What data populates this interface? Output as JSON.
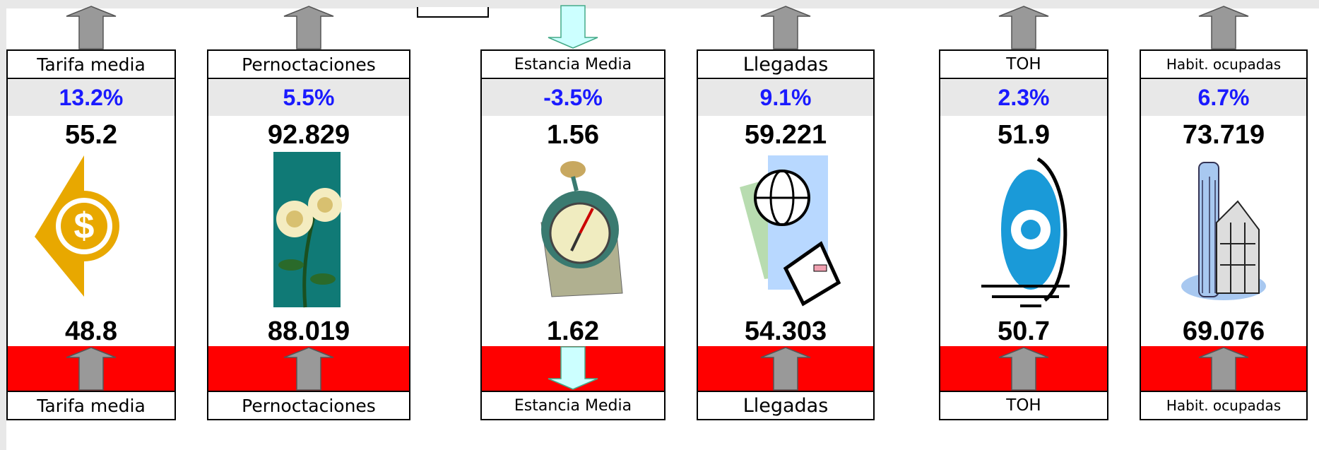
{
  "cards": [
    {
      "top_label": "Tarifa media",
      "change": "13.2%",
      "current": "55.2",
      "previous": "48.8",
      "bottom_label": "Tarifa media"
    },
    {
      "top_label": "Pernoctaciones",
      "change": "5.5%",
      "current": "92.829",
      "previous": "88.019",
      "bottom_label": "Pernoctaciones"
    },
    {
      "top_label": "Estancia Media",
      "change": "-3.5%",
      "current": "1.56",
      "previous": "1.62",
      "bottom_label": "Estancia Media"
    },
    {
      "top_label": "Llegadas",
      "change": "9.1%",
      "current": "59.221",
      "previous": "54.303",
      "bottom_label": "Llegadas"
    },
    {
      "top_label": "TOH",
      "change": "2.3%",
      "current": "51.9",
      "previous": "50.7",
      "bottom_label": "TOH"
    },
    {
      "top_label": "Habit. ocupadas",
      "change": "6.7%",
      "current": "73.719",
      "previous": "69.076",
      "bottom_label": "Habit. ocupadas"
    }
  ]
}
